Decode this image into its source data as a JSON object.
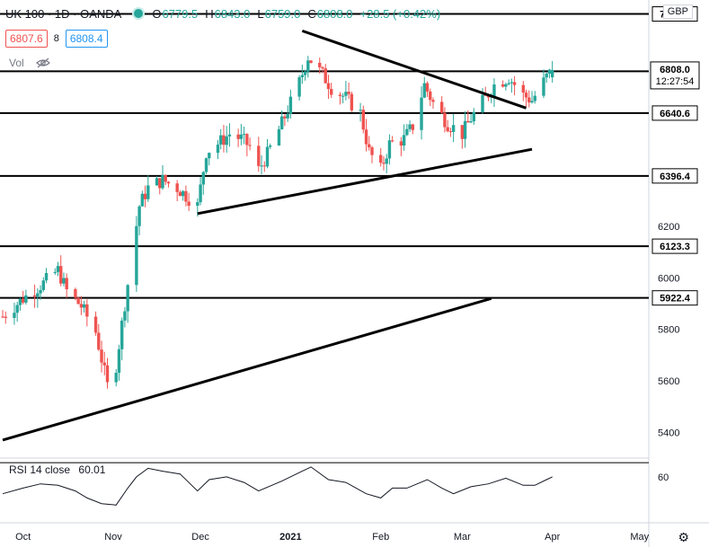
{
  "header": {
    "symbol": "UK 100 · 1D · OANDA",
    "open_label": "O",
    "open": "6779.5",
    "high_label": "H",
    "high": "6843.0",
    "low_label": "L",
    "low": "6759.0",
    "close_label": "C",
    "close": "6808.0",
    "change": "+28.5 (+0.42%)"
  },
  "bid": "6807.6",
  "spread": "8",
  "ask": "6808.4",
  "vol_label": "Vol",
  "rsi_label": "RSI 14 close",
  "rsi_value": "60.01",
  "currency": "GBP",
  "colors": {
    "up": "#26a69a",
    "down": "#ef5350",
    "line": "#000000",
    "rsi": "#131722"
  },
  "chart_data": {
    "type": "candlestick",
    "title": "UK 100",
    "ylim": [
      5300,
      7080
    ],
    "y_ticks": [
      5400,
      5600,
      5800,
      6000,
      6200
    ],
    "x_ticks": [
      "Oct",
      "Nov",
      "Dec",
      "2021",
      "Feb",
      "Mar",
      "Apr",
      "May"
    ],
    "horizontal_levels": [
      7025.8,
      6803.1,
      6640.6,
      6396.4,
      6123.3,
      5922.4
    ],
    "last_price": "6808.0",
    "countdown": "12:27:54",
    "trendlines": [
      {
        "from": [
          "2021-01-05",
          6960
        ],
        "to": [
          "2021-03-23",
          6660
        ]
      },
      {
        "from": [
          "2020-11-30",
          6250
        ],
        "to": [
          "2021-03-25",
          6500
        ]
      },
      {
        "from": [
          "2020-09-24",
          5370
        ],
        "to": [
          "2021-03-11",
          5920
        ]
      }
    ],
    "close_path": [
      [
        "2020-09-24",
        5850
      ],
      [
        "2020-10-01",
        5920
      ],
      [
        "2020-10-08",
        5980
      ],
      [
        "2020-10-13",
        6030
      ],
      [
        "2020-10-16",
        5950
      ],
      [
        "2020-10-21",
        5890
      ],
      [
        "2020-10-26",
        5790
      ],
      [
        "2020-10-30",
        5580
      ],
      [
        "2020-11-02",
        5660
      ],
      [
        "2020-11-05",
        5900
      ],
      [
        "2020-11-10",
        6280
      ],
      [
        "2020-11-13",
        6350
      ],
      [
        "2020-11-18",
        6380
      ],
      [
        "2020-11-23",
        6350
      ],
      [
        "2020-11-30",
        6280
      ],
      [
        "2020-12-03",
        6490
      ],
      [
        "2020-12-08",
        6530
      ],
      [
        "2020-12-11",
        6560
      ],
      [
        "2020-12-15",
        6540
      ],
      [
        "2020-12-18",
        6510
      ],
      [
        "2020-12-21",
        6420
      ],
      [
        "2020-12-24",
        6480
      ],
      [
        "2020-12-29",
        6600
      ],
      [
        "2021-01-04",
        6760
      ],
      [
        "2021-01-07",
        6860
      ],
      [
        "2021-01-12",
        6790
      ],
      [
        "2021-01-15",
        6740
      ],
      [
        "2021-01-20",
        6700
      ],
      [
        "2021-01-25",
        6640
      ],
      [
        "2021-01-28",
        6490
      ],
      [
        "2021-02-01",
        6420
      ],
      [
        "2021-02-04",
        6520
      ],
      [
        "2021-02-09",
        6540
      ],
      [
        "2021-02-12",
        6590
      ],
      [
        "2021-02-16",
        6750
      ],
      [
        "2021-02-19",
        6680
      ],
      [
        "2021-02-24",
        6600
      ],
      [
        "2021-03-01",
        6560
      ],
      [
        "2021-03-04",
        6620
      ],
      [
        "2021-03-09",
        6700
      ],
      [
        "2021-03-12",
        6750
      ],
      [
        "2021-03-17",
        6780
      ],
      [
        "2021-03-22",
        6710
      ],
      [
        "2021-03-25",
        6690
      ],
      [
        "2021-03-30",
        6780
      ],
      [
        "2021-04-01",
        6808
      ]
    ],
    "rsi": {
      "label": "RSI 14 close",
      "ticks": [
        60
      ],
      "last": 60.01,
      "path": [
        [
          "2020-09-24",
          48
        ],
        [
          "2020-10-01",
          52
        ],
        [
          "2020-10-07",
          55
        ],
        [
          "2020-10-13",
          54
        ],
        [
          "2020-10-19",
          50
        ],
        [
          "2020-10-23",
          45
        ],
        [
          "2020-10-28",
          41
        ],
        [
          "2020-11-02",
          40
        ],
        [
          "2020-11-06",
          52
        ],
        [
          "2020-11-09",
          60
        ],
        [
          "2020-11-13",
          66
        ],
        [
          "2020-11-18",
          64
        ],
        [
          "2020-11-24",
          62
        ],
        [
          "2020-11-30",
          50
        ],
        [
          "2020-12-04",
          58
        ],
        [
          "2020-12-10",
          60
        ],
        [
          "2020-12-16",
          56
        ],
        [
          "2020-12-21",
          50
        ],
        [
          "2020-12-29",
          57
        ],
        [
          "2021-01-05",
          64
        ],
        [
          "2021-01-08",
          67
        ],
        [
          "2021-01-14",
          58
        ],
        [
          "2021-01-20",
          56
        ],
        [
          "2021-01-27",
          48
        ],
        [
          "2021-02-01",
          45
        ],
        [
          "2021-02-05",
          52
        ],
        [
          "2021-02-10",
          52
        ],
        [
          "2021-02-17",
          58
        ],
        [
          "2021-02-22",
          52
        ],
        [
          "2021-02-26",
          48
        ],
        [
          "2021-03-04",
          53
        ],
        [
          "2021-03-10",
          55
        ],
        [
          "2021-03-16",
          59
        ],
        [
          "2021-03-22",
          54
        ],
        [
          "2021-03-26",
          54
        ],
        [
          "2021-03-30",
          58
        ],
        [
          "2021-04-01",
          60
        ]
      ]
    }
  }
}
